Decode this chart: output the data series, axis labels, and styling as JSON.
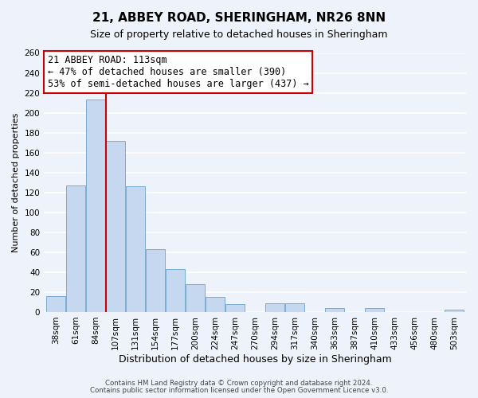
{
  "title": "21, ABBEY ROAD, SHERINGHAM, NR26 8NN",
  "subtitle": "Size of property relative to detached houses in Sheringham",
  "xlabel": "Distribution of detached houses by size in Sheringham",
  "ylabel": "Number of detached properties",
  "bar_labels": [
    "38sqm",
    "61sqm",
    "84sqm",
    "107sqm",
    "131sqm",
    "154sqm",
    "177sqm",
    "200sqm",
    "224sqm",
    "247sqm",
    "270sqm",
    "294sqm",
    "317sqm",
    "340sqm",
    "363sqm",
    "387sqm",
    "410sqm",
    "433sqm",
    "456sqm",
    "480sqm",
    "503sqm"
  ],
  "bar_values": [
    16,
    127,
    213,
    172,
    126,
    63,
    43,
    28,
    15,
    8,
    0,
    9,
    9,
    0,
    4,
    0,
    4,
    0,
    0,
    0,
    2
  ],
  "bar_color": "#c5d8f0",
  "bar_edge_color": "#7aadd4",
  "vline_color": "#cc0000",
  "annotation_text": "21 ABBEY ROAD: 113sqm\n← 47% of detached houses are smaller (390)\n53% of semi-detached houses are larger (437) →",
  "annotation_box_edge_color": "#cc0000",
  "annotation_fontsize": 8.5,
  "ylim": [
    0,
    260
  ],
  "yticks": [
    0,
    20,
    40,
    60,
    80,
    100,
    120,
    140,
    160,
    180,
    200,
    220,
    240,
    260
  ],
  "title_fontsize": 11,
  "subtitle_fontsize": 9,
  "xlabel_fontsize": 9,
  "ylabel_fontsize": 8,
  "tick_fontsize": 7.5,
  "footer_line1": "Contains HM Land Registry data © Crown copyright and database right 2024.",
  "footer_line2": "Contains public sector information licensed under the Open Government Licence v3.0.",
  "background_color": "#eef2fa",
  "plot_background_color": "#eef2fa",
  "grid_color": "#ffffff"
}
